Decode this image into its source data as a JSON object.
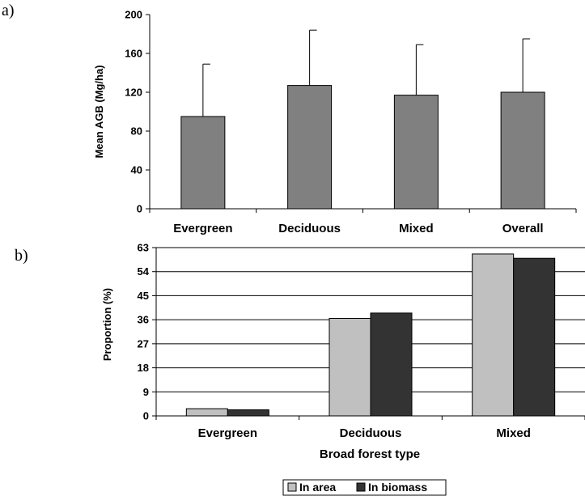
{
  "chart_data": [
    {
      "type": "bar",
      "panel_label": "a)",
      "categories": [
        "Evergreen",
        "Deciduous",
        "Mixed",
        "Overall"
      ],
      "values": [
        95,
        127,
        117,
        120
      ],
      "error_bars_upper": [
        149,
        184,
        169,
        175
      ],
      "ylabel": "Mean AGB (Mg/ha)",
      "ylim": [
        0,
        200
      ],
      "yticks": [
        0,
        40,
        80,
        120,
        160,
        200
      ],
      "bar_color": "#808080",
      "grid": false
    },
    {
      "type": "bar",
      "panel_label": "b)",
      "categories": [
        "Evergreen",
        "Deciduous",
        "Mixed"
      ],
      "series": [
        {
          "name": "In area",
          "values": [
            2.7,
            36.5,
            60.6
          ],
          "color": "#c0c0c0"
        },
        {
          "name": "In biomass",
          "values": [
            2.3,
            38.5,
            59.0
          ],
          "color": "#333333"
        }
      ],
      "xlabel": "Broad forest type",
      "ylabel": "Proportion (%)",
      "ylim": [
        0,
        63
      ],
      "yticks": [
        0,
        9,
        18,
        27,
        36,
        45,
        54,
        63
      ],
      "grid": true,
      "legend_position": "bottom"
    }
  ]
}
